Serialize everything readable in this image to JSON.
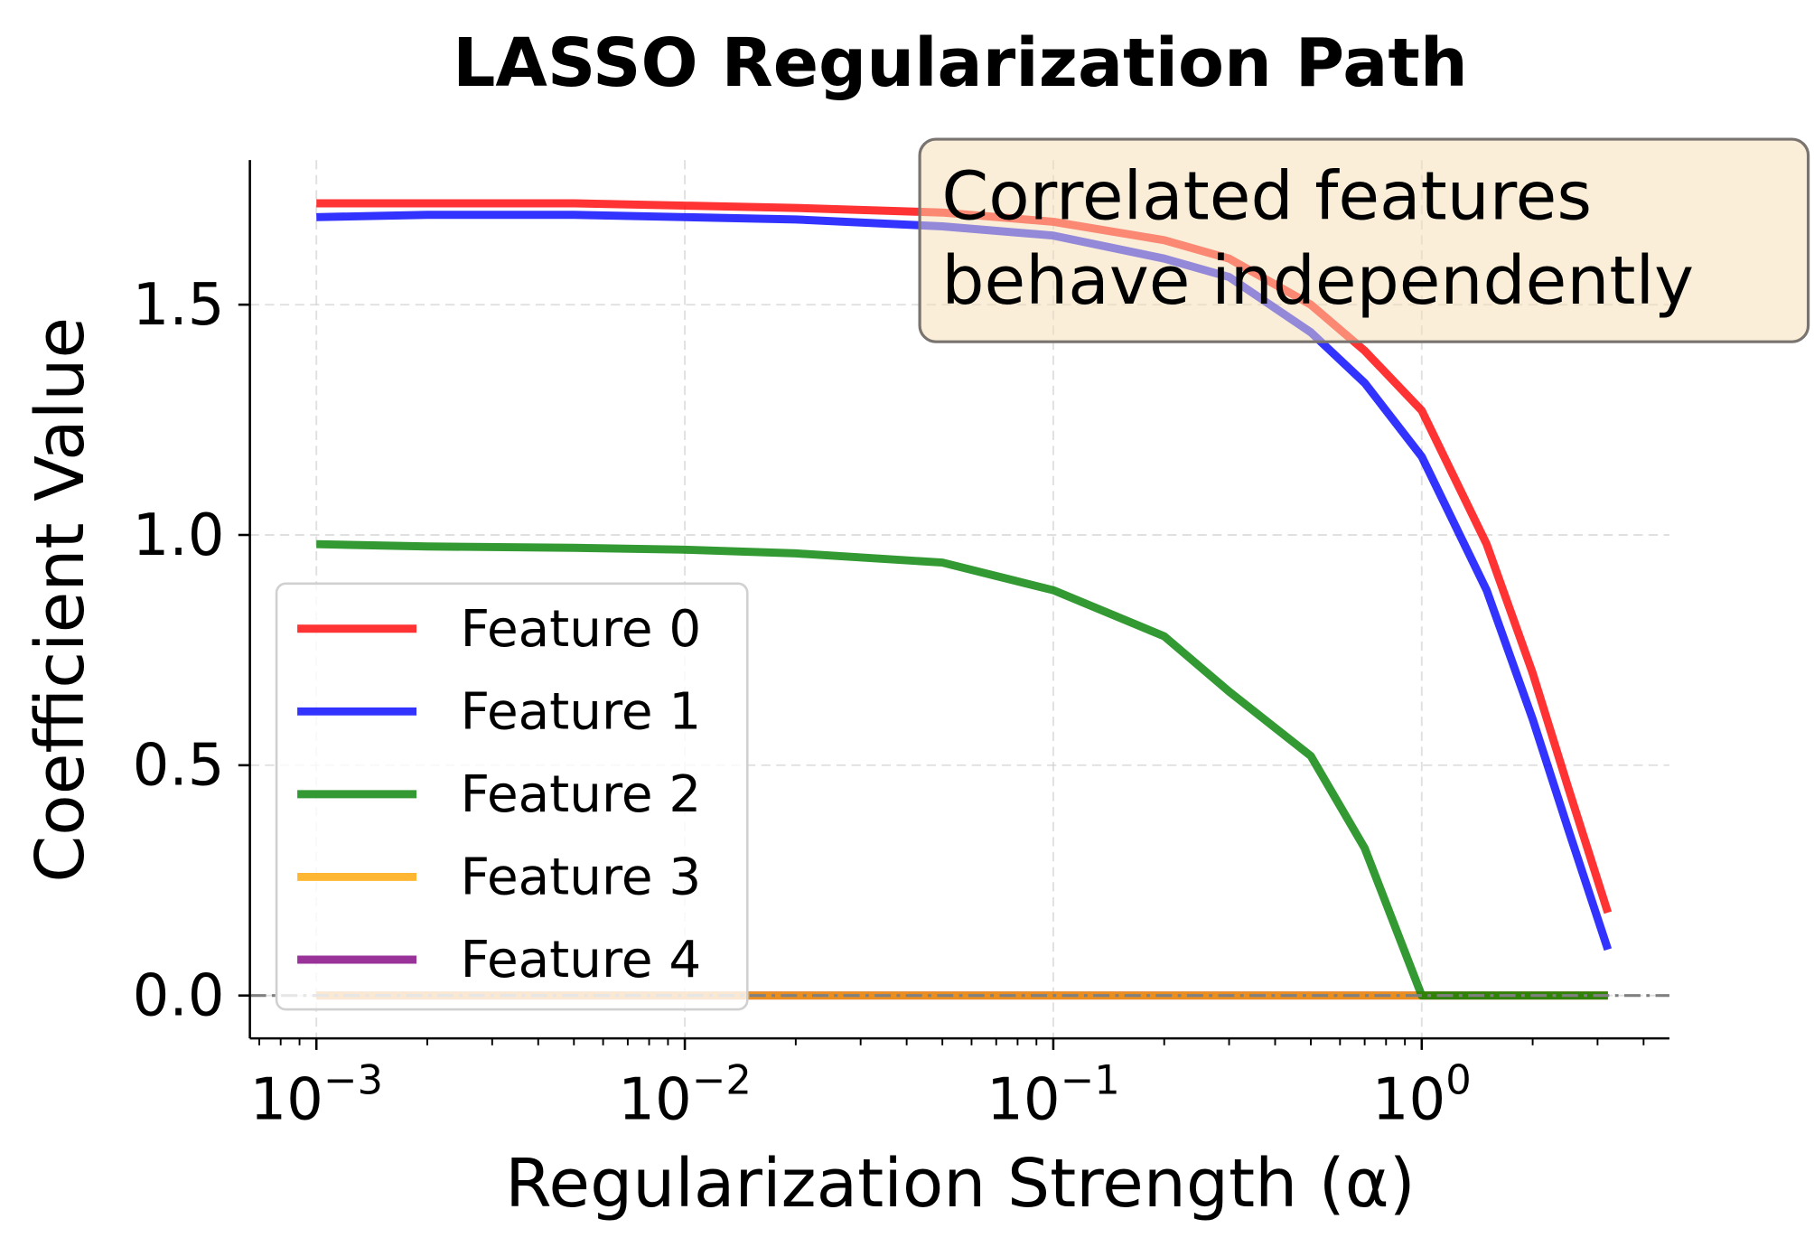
{
  "chart_data": {
    "type": "line",
    "title": "LASSO Regularization Path",
    "xlabel": "Regularization Strength (α)",
    "ylabel": "Coefficient Value",
    "xscale": "log",
    "xlim": [
      0.00066,
      4.7
    ],
    "ylim": [
      -0.093,
      1.814
    ],
    "grid": true,
    "legend_placement": "lower-left",
    "x_ticks": [
      {
        "value": 0.001,
        "base": "10",
        "exp": "−3"
      },
      {
        "value": 0.01,
        "base": "10",
        "exp": "−2"
      },
      {
        "value": 0.1,
        "base": "10",
        "exp": "−1"
      },
      {
        "value": 1,
        "base": "10",
        "exp": "0"
      }
    ],
    "y_ticks": [
      {
        "value": 0.0,
        "label": "0.0"
      },
      {
        "value": 0.5,
        "label": "0.5"
      },
      {
        "value": 1.0,
        "label": "1.0"
      },
      {
        "value": 1.5,
        "label": "1.5"
      }
    ],
    "reference_line": {
      "y": 0,
      "color": "#808080",
      "style": "dash-dot"
    },
    "x": [
      0.001,
      0.002,
      0.005,
      0.01,
      0.02,
      0.05,
      0.1,
      0.2,
      0.3,
      0.5,
      0.7,
      1.0,
      1.5,
      2.0,
      2.5,
      3.2
    ],
    "series": [
      {
        "name": "Feature 0",
        "color": "#ff0000",
        "values": [
          1.72,
          1.72,
          1.72,
          1.715,
          1.71,
          1.7,
          1.68,
          1.64,
          1.6,
          1.5,
          1.4,
          1.27,
          0.98,
          0.7,
          0.45,
          0.18
        ]
      },
      {
        "name": "Feature 1",
        "color": "#0000ff",
        "values": [
          1.69,
          1.695,
          1.695,
          1.69,
          1.685,
          1.67,
          1.65,
          1.6,
          1.56,
          1.44,
          1.33,
          1.17,
          0.88,
          0.6,
          0.36,
          0.1
        ]
      },
      {
        "name": "Feature 2",
        "color": "#008000",
        "values": [
          0.98,
          0.975,
          0.972,
          0.968,
          0.96,
          0.94,
          0.88,
          0.78,
          0.66,
          0.52,
          0.32,
          0.0,
          0.0,
          0.0,
          0.0,
          0.0
        ]
      },
      {
        "name": "Feature 3",
        "color": "#ffa500",
        "values": [
          0,
          0,
          0,
          0,
          0,
          0,
          0,
          0,
          0,
          0,
          0,
          0,
          0,
          0,
          0,
          0
        ]
      },
      {
        "name": "Feature 4",
        "color": "#800080",
        "values": [
          0,
          0,
          0,
          0,
          0,
          0,
          0,
          0,
          0,
          0,
          0,
          0,
          0,
          0,
          0,
          0
        ]
      }
    ],
    "annotation": {
      "lines": [
        "Correlated features",
        "behave independently"
      ],
      "background": "#f5deb3"
    }
  }
}
